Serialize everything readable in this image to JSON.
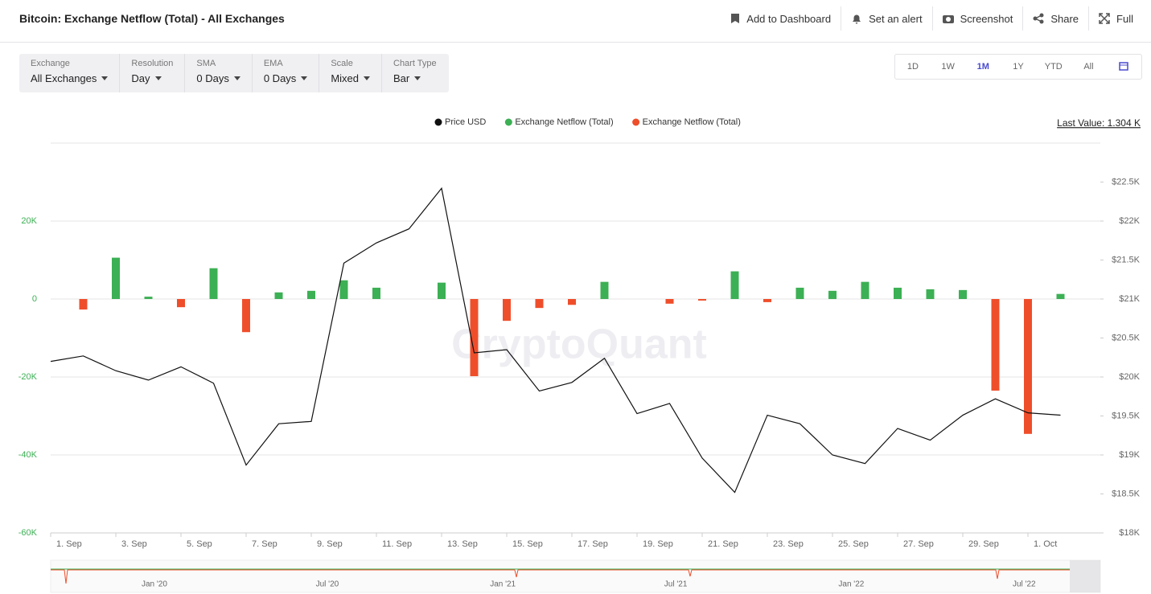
{
  "header": {
    "title": "Bitcoin: Exchange Netflow (Total) - All Exchanges",
    "actions": [
      "Add to Dashboard",
      "Set an alert",
      "Screenshot",
      "Share",
      "Full"
    ]
  },
  "controls": [
    {
      "label": "Exchange",
      "value": "All Exchanges"
    },
    {
      "label": "Resolution",
      "value": "Day"
    },
    {
      "label": "SMA",
      "value": "0 Days"
    },
    {
      "label": "EMA",
      "value": "0 Days"
    },
    {
      "label": "Scale",
      "value": "Mixed"
    },
    {
      "label": "Chart Type",
      "value": "Bar"
    }
  ],
  "ranges": [
    "1D",
    "1W",
    "1M",
    "1Y",
    "YTD",
    "All"
  ],
  "last_value": "Last Value: 1.304 K",
  "watermark": "CryptoQuant",
  "chart_data": {
    "type": "combo",
    "categories": [
      "1. Sep",
      null,
      "3. Sep",
      null,
      "5. Sep",
      null,
      "7. Sep",
      null,
      "9. Sep",
      null,
      "11. Sep",
      null,
      "13. Sep",
      null,
      "15. Sep",
      null,
      "17. Sep",
      null,
      "19. Sep",
      null,
      "21. Sep",
      null,
      "23. Sep",
      null,
      "25. Sep",
      null,
      "27. Sep",
      null,
      "29. Sep",
      null,
      "1. Oct",
      null
    ],
    "series": [
      {
        "name": "Price USD",
        "color": "#111111",
        "type": "line",
        "axis": "y2",
        "values": [
          20200,
          20270,
          20080,
          19960,
          20130,
          19920,
          18870,
          19400,
          19430,
          21460,
          21720,
          21900,
          22420,
          20310,
          20350,
          19820,
          19930,
          20240,
          19530,
          19660,
          18960,
          18520,
          19510,
          19400,
          19000,
          18890,
          19340,
          19190,
          19510,
          19720,
          19540,
          19510
        ]
      },
      {
        "name": "Exchange Netflow (Total)",
        "color": "#3cb054",
        "type": "bar",
        "values": [
          null,
          null,
          10600,
          600,
          null,
          7900,
          null,
          1700,
          2100,
          4800,
          2900,
          null,
          4200,
          null,
          null,
          null,
          null,
          4400,
          null,
          null,
          null,
          7100,
          null,
          2900,
          2100,
          4400,
          2900,
          2500,
          2300,
          null,
          null,
          1304
        ]
      },
      {
        "name": "Exchange Netflow (Total)",
        "color": "#ef4e2b",
        "type": "bar",
        "values": [
          null,
          -2700,
          null,
          null,
          -2100,
          null,
          -8500,
          null,
          null,
          null,
          null,
          null,
          null,
          -19800,
          -5600,
          -2300,
          -1500,
          null,
          null,
          -1200,
          -400,
          null,
          -800,
          null,
          null,
          null,
          null,
          null,
          null,
          -23500,
          -34600,
          null
        ]
      }
    ],
    "ylim": [
      -60000,
      40000
    ],
    "yticks": [
      {
        "value": -60000,
        "label": "-60K"
      },
      {
        "value": -40000,
        "label": "-40K"
      },
      {
        "value": -20000,
        "label": "-20K"
      },
      0,
      {
        "value": 20000,
        "label": "20K"
      }
    ],
    "y2lim": [
      18000,
      23000
    ],
    "y2ticks": [
      {
        "value": 18000,
        "label": "$18K"
      },
      {
        "value": 18500,
        "label": "$18.5K"
      },
      {
        "value": 19000,
        "label": "$19K"
      },
      {
        "value": 19500,
        "label": "$19.5K"
      },
      {
        "value": 20000,
        "label": "$20K"
      },
      {
        "value": 20500,
        "label": "$20.5K"
      },
      {
        "value": 21000,
        "label": "$21K"
      },
      {
        "value": 21500,
        "label": "$21.5K"
      },
      {
        "value": 22000,
        "label": "$22K"
      },
      {
        "value": 22500,
        "label": "$22.5K"
      }
    ],
    "grid": true
  },
  "navigator": {
    "labels": [
      "Jan '20",
      "Jul '20",
      "Jan '21",
      "Jul '21",
      "Jan '22",
      "Jul '22"
    ]
  }
}
